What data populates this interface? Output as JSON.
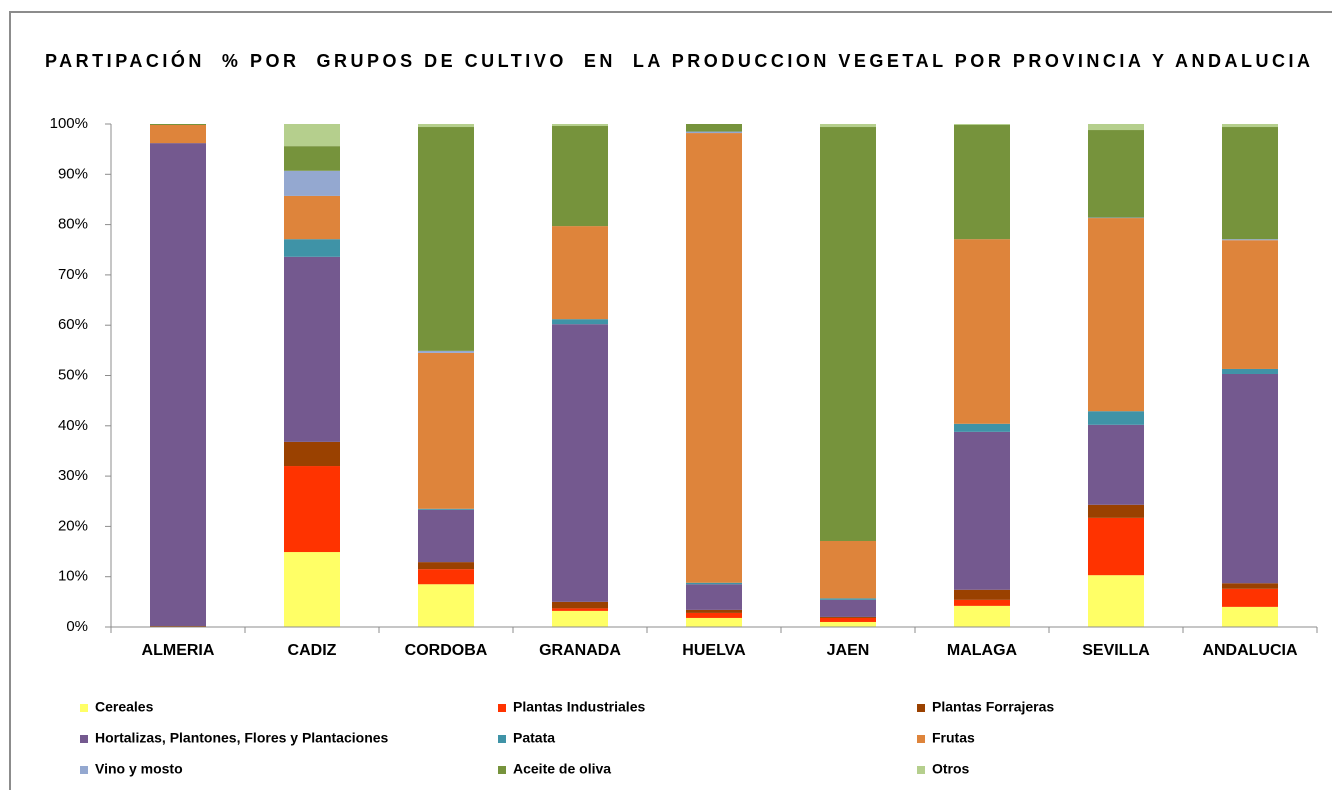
{
  "chart_data": {
    "type": "stacked_bar",
    "title": "PARTIPACIÓN  % POR  GRUPOS DE CULTIVO  EN  LA PRODUCCION VEGETAL POR PROVINCIA Y ANDALUCIA",
    "categories": [
      "ALMERIA",
      "CADIZ",
      "CORDOBA",
      "GRANADA",
      "HUELVA",
      "JAEN",
      "MALAGA",
      "SEVILLA",
      "ANDALUCIA"
    ],
    "ylim": [
      0,
      100
    ],
    "yticks": [
      {
        "value": 0,
        "label": "0%"
      },
      {
        "value": 10,
        "label": "10%"
      },
      {
        "value": 20,
        "label": "20%"
      },
      {
        "value": 30,
        "label": "30%"
      },
      {
        "value": 40,
        "label": "40%"
      },
      {
        "value": 50,
        "label": "50%"
      },
      {
        "value": 60,
        "label": "60%"
      },
      {
        "value": 70,
        "label": "70%"
      },
      {
        "value": 80,
        "label": "80%"
      },
      {
        "value": 90,
        "label": "90%"
      },
      {
        "value": 100,
        "label": "100%"
      }
    ],
    "grid": false,
    "legend": "bottom",
    "series": [
      {
        "name": "Cereales",
        "color": "#ffff66",
        "values": [
          0,
          14.9,
          8.5,
          3.2,
          1.8,
          1.0,
          4.2,
          10.3,
          4.0
        ]
      },
      {
        "name": "Plantas Industriales",
        "color": "#ff3300",
        "values": [
          0,
          17.1,
          3.0,
          0.5,
          1.0,
          0.8,
          1.2,
          11.4,
          3.6
        ]
      },
      {
        "name": "Plantas Forrajeras",
        "color": "#9a4100",
        "values": [
          0.2,
          4.8,
          1.4,
          1.3,
          0.6,
          0.2,
          2.0,
          2.6,
          1.1
        ]
      },
      {
        "name": "Hortalizas, Plantones, Flores y Plantaciones",
        "color": "#74598f",
        "values": [
          96,
          36.8,
          10.4,
          55.2,
          5.1,
          3.4,
          31.4,
          15.9,
          41.6
        ]
      },
      {
        "name": "Patata",
        "color": "#3f93a7",
        "values": [
          0,
          3.5,
          0.2,
          1.0,
          0.3,
          0.3,
          1.6,
          2.7,
          1.0
        ]
      },
      {
        "name": "Frutas",
        "color": "#de843b",
        "values": [
          3.6,
          8.6,
          31.0,
          18.5,
          89.4,
          11.4,
          36.7,
          38.4,
          25.6
        ]
      },
      {
        "name": "Vino y mosto",
        "color": "#94a8d0",
        "values": [
          0,
          5.0,
          0.4,
          0,
          0.3,
          0,
          0,
          0.1,
          0.2
        ]
      },
      {
        "name": "Aceite de oliva",
        "color": "#76933c",
        "values": [
          0.2,
          4.9,
          44.5,
          19.9,
          1.5,
          82.3,
          22.7,
          17.4,
          22.3
        ]
      },
      {
        "name": "Otros",
        "color": "#b5cf8d",
        "values": [
          0,
          4.4,
          0.6,
          0.4,
          0,
          0.6,
          0.2,
          1.2,
          0.6
        ]
      }
    ]
  }
}
